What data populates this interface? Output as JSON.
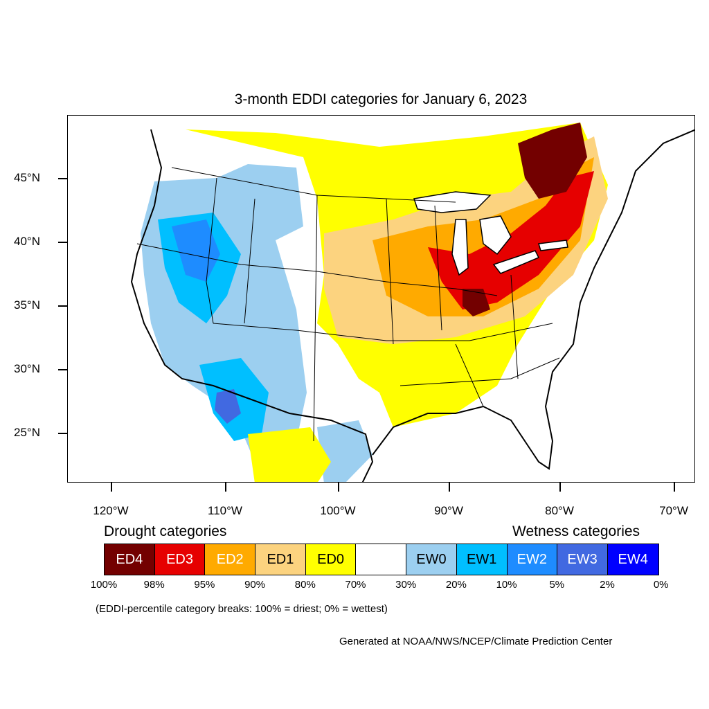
{
  "map": {
    "title": "3-month EDDI categories for January 6, 2023",
    "lat_labels": [
      "45°N",
      "40°N",
      "35°N",
      "30°N",
      "25°N"
    ],
    "lon_labels": [
      "120°W",
      "110°W",
      "100°W",
      "90°W",
      "80°W",
      "70°W"
    ]
  },
  "legend": {
    "drought_heading": "Drought categories",
    "wetness_heading": "Wetness categories",
    "categories": [
      {
        "label": "ED4",
        "color": "#730000",
        "text_color": "#ffffff"
      },
      {
        "label": "ED3",
        "color": "#e60000",
        "text_color": "#ffffff"
      },
      {
        "label": "ED2",
        "color": "#ffaa00",
        "text_color": "#ffffff"
      },
      {
        "label": "ED1",
        "color": "#fcd37f",
        "text_color": "#000000"
      },
      {
        "label": "ED0",
        "color": "#ffff00",
        "text_color": "#000000"
      },
      {
        "label": "",
        "color": "#ffffff",
        "text_color": "#000000"
      },
      {
        "label": "EW0",
        "color": "#9ccff0",
        "text_color": "#000000"
      },
      {
        "label": "EW1",
        "color": "#00bfff",
        "text_color": "#000000"
      },
      {
        "label": "EW2",
        "color": "#1e8cff",
        "text_color": "#ffffff"
      },
      {
        "label": "EW3",
        "color": "#4169e1",
        "text_color": "#ffffff"
      },
      {
        "label": "EW4",
        "color": "#0000ff",
        "text_color": "#ffffff"
      }
    ],
    "breaks": [
      "100%",
      "98%",
      "95%",
      "90%",
      "80%",
      "70%",
      "30%",
      "20%",
      "10%",
      "5%",
      "2%",
      "0%"
    ],
    "note": "(EDDI-percentile category breaks: 100% = driest; 0% = wettest)"
  },
  "credit": "Generated at NOAA/NWS/NCEP/Climate Prediction Center"
}
